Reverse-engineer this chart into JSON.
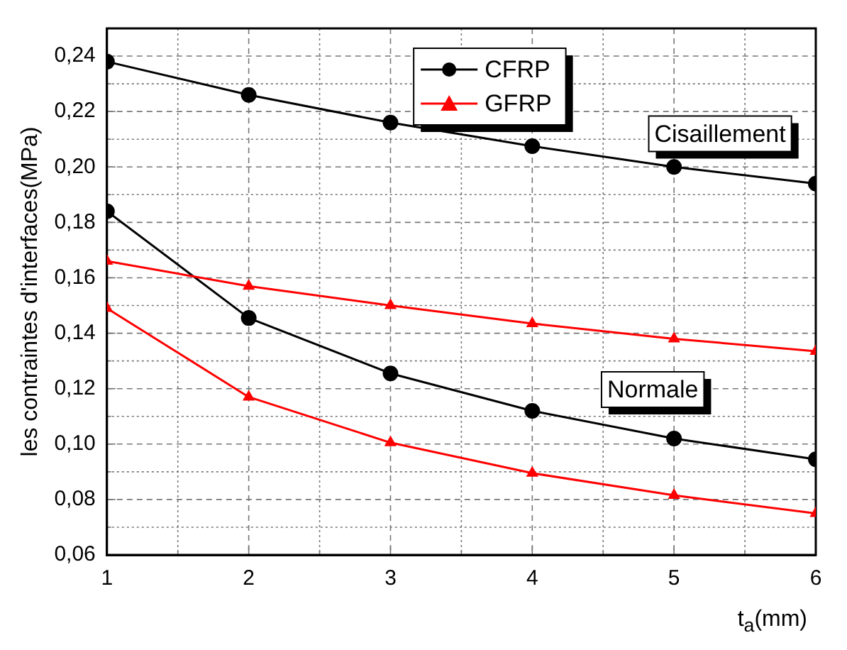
{
  "chart_data": {
    "type": "line",
    "x": [
      1,
      2,
      3,
      4,
      5,
      6
    ],
    "series": [
      {
        "name": "CFRP",
        "color": "#000000",
        "marker": "circle",
        "values": [
          0.238,
          0.226,
          0.216,
          0.2075,
          0.2,
          0.194
        ]
      },
      {
        "name": "GFRP",
        "color": "#ff0000",
        "marker": "triangle",
        "values": [
          0.166,
          0.157,
          0.15,
          0.1435,
          0.138,
          0.1335
        ]
      },
      {
        "color": "#000000",
        "marker": "circle",
        "values": [
          0.184,
          0.1455,
          0.1255,
          0.112,
          0.102,
          0.0945
        ]
      },
      {
        "color": "#ff0000",
        "marker": "triangle",
        "values": [
          0.149,
          0.117,
          0.1005,
          0.0895,
          0.0815,
          0.075
        ]
      }
    ],
    "xlabel": "t$_{a}$(mm)",
    "ylabel": "les contraintes d'interfaces(MPa)",
    "xlim": [
      1,
      6
    ],
    "xticks": [
      1,
      {
        "value": 1.5,
        "label": null
      },
      2,
      {
        "value": 2.5,
        "label": null
      },
      3,
      {
        "value": 3.5,
        "label": null
      },
      4,
      {
        "value": 4.5,
        "label": null
      },
      5,
      {
        "value": 5.5,
        "label": null
      },
      6
    ],
    "ylim": [
      0.06,
      0.25
    ],
    "yticks": [
      {
        "value": 0.06,
        "label": "0,06"
      },
      {
        "value": 0.07,
        "label": null
      },
      {
        "value": 0.08,
        "label": "0,08"
      },
      {
        "value": 0.09,
        "label": null
      },
      {
        "value": 0.1,
        "label": "0,10"
      },
      {
        "value": 0.11,
        "label": null
      },
      {
        "value": 0.12,
        "label": "0,12"
      },
      {
        "value": 0.13,
        "label": null
      },
      {
        "value": 0.14,
        "label": "0,14"
      },
      {
        "value": 0.15,
        "label": null
      },
      {
        "value": 0.16,
        "label": "0,16"
      },
      {
        "value": 0.17,
        "label": null
      },
      {
        "value": 0.18,
        "label": "0,18"
      },
      {
        "value": 0.19,
        "label": null
      },
      {
        "value": 0.2,
        "label": "0,20"
      },
      {
        "value": 0.21,
        "label": null
      },
      {
        "value": 0.22,
        "label": "0,22"
      },
      {
        "value": 0.23,
        "label": null
      },
      {
        "value": 0.24,
        "label": "0,24"
      }
    ],
    "grid": true,
    "legend": "top",
    "line_style": "solid",
    "annotations": [
      "Cisaillement",
      "Normale"
    ]
  }
}
